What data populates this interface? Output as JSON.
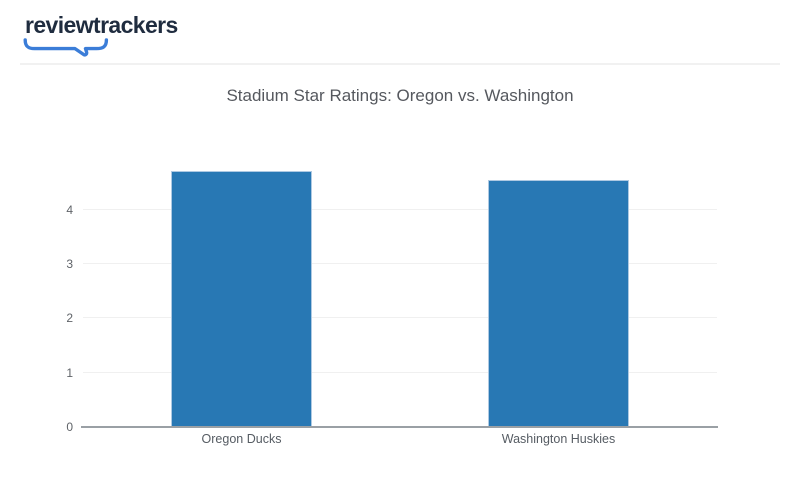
{
  "brand": {
    "logo_text": "reviewtrackers",
    "logo_color": "#1f2c3f",
    "bracket_color": "#3b7dd8"
  },
  "chart_data": {
    "type": "bar",
    "title": "Stadium Star Ratings: Oregon vs. Washington",
    "categories": [
      "Oregon Ducks",
      "Washington Huskies"
    ],
    "values": [
      4.7,
      4.55
    ],
    "yticks": [
      0,
      1,
      2,
      3,
      4
    ],
    "ylim": [
      0,
      4.8
    ],
    "xlabel": "",
    "ylabel": "",
    "grid": true,
    "legend": false,
    "bar_color": "#2878b4"
  }
}
